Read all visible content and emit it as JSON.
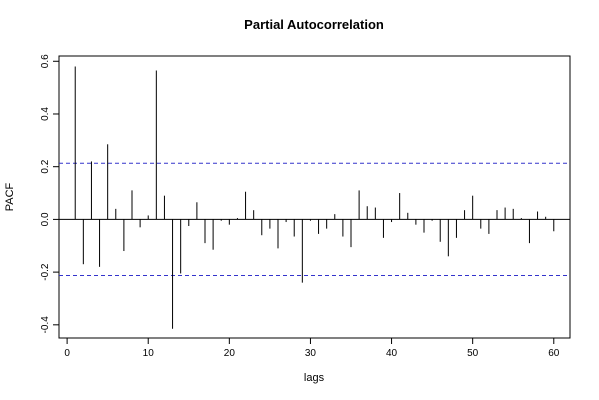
{
  "chart_data": {
    "type": "bar",
    "title": "Partial Autocorrelation",
    "xlabel": "lags",
    "ylabel": "PACF",
    "xlim": [
      -1,
      62
    ],
    "ylim": [
      -0.45,
      0.62
    ],
    "x_ticks": [
      0,
      10,
      20,
      30,
      40,
      50,
      60
    ],
    "y_ticks": [
      -0.4,
      -0.2,
      0.0,
      0.2,
      0.4,
      0.6
    ],
    "y_tick_labels": [
      "-0.4",
      "-0.2",
      "0.0",
      "0.2",
      "0.4",
      "0.6"
    ],
    "confidence_bound": 0.213,
    "confidence_color": "#3333cc",
    "grid": false,
    "series": [
      {
        "lags": [
          1,
          2,
          3,
          4,
          5,
          6,
          7,
          8,
          9,
          10,
          11,
          12,
          13,
          14,
          15,
          16,
          17,
          18,
          19,
          20,
          21,
          22,
          23,
          24,
          25,
          26,
          27,
          28,
          29,
          30,
          31,
          32,
          33,
          34,
          35,
          36,
          37,
          38,
          39,
          40,
          41,
          42,
          43,
          44,
          45,
          46,
          47,
          48,
          49,
          50,
          51,
          52,
          53,
          54,
          55,
          56,
          57,
          58,
          59,
          60
        ],
        "values": [
          0.58,
          -0.17,
          0.22,
          -0.18,
          0.285,
          0.04,
          -0.12,
          0.11,
          -0.03,
          0.015,
          0.565,
          0.09,
          -0.415,
          -0.205,
          -0.025,
          0.065,
          -0.09,
          -0.115,
          -0.005,
          -0.02,
          0.005,
          0.105,
          0.035,
          -0.06,
          -0.035,
          -0.11,
          -0.01,
          -0.065,
          -0.24,
          -0.005,
          -0.055,
          -0.035,
          0.02,
          -0.065,
          -0.105,
          0.11,
          0.05,
          0.045,
          -0.07,
          -0.01,
          0.1,
          0.025,
          -0.02,
          -0.05,
          -0.005,
          -0.085,
          -0.14,
          -0.07,
          0.035,
          0.09,
          -0.035,
          -0.055,
          0.035,
          0.045,
          0.04,
          0.005,
          -0.09,
          0.03,
          0.01,
          -0.045
        ]
      }
    ]
  }
}
